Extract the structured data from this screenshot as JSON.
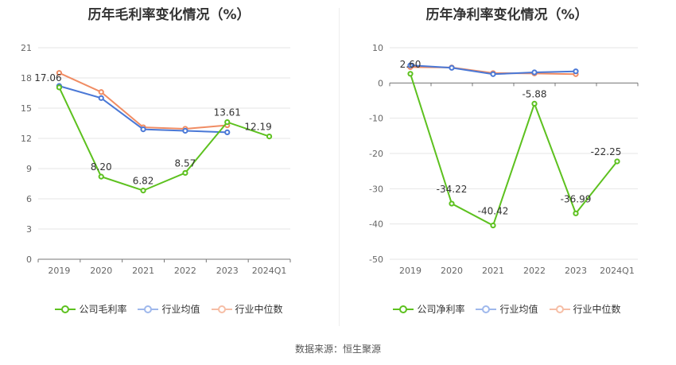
{
  "source_label": "数据来源：恒生聚源",
  "legend_labels": {
    "left": [
      "公司毛利率",
      "行业均值",
      "行业中位数"
    ],
    "right": [
      "公司净利率",
      "行业均值",
      "行业中位数"
    ]
  },
  "series_colors": [
    "#5dc11f",
    "#4a78d6",
    "#f08c63"
  ],
  "chart_data": [
    {
      "type": "line",
      "title": "历年毛利率变化情况（%）",
      "categories": [
        "2019",
        "2020",
        "2021",
        "2022",
        "2023",
        "2024Q1"
      ],
      "ylim": [
        0,
        21
      ],
      "yticks": [
        0,
        3,
        6,
        9,
        12,
        15,
        18,
        21
      ],
      "grid": true,
      "legend_position": "bottom",
      "series": [
        {
          "name": "公司毛利率",
          "values": [
            17.06,
            8.2,
            6.82,
            8.57,
            13.61,
            12.19
          ],
          "labels": [
            "17.06",
            "8.20",
            "6.82",
            "8.57",
            "13.61",
            "12.19"
          ]
        },
        {
          "name": "行业均值",
          "values": [
            17.2,
            16.0,
            12.9,
            12.75,
            12.6,
            null
          ]
        },
        {
          "name": "行业中位数",
          "values": [
            18.5,
            16.6,
            13.1,
            12.95,
            13.3,
            null
          ]
        }
      ]
    },
    {
      "type": "line",
      "title": "历年净利率变化情况（%）",
      "categories": [
        "2019",
        "2020",
        "2021",
        "2022",
        "2023",
        "2024Q1"
      ],
      "ylim": [
        -50,
        10
      ],
      "yticks": [
        -50,
        -40,
        -30,
        -20,
        -10,
        0,
        10
      ],
      "grid": true,
      "legend_position": "bottom",
      "series": [
        {
          "name": "公司净利率",
          "values": [
            2.6,
            -34.22,
            -40.42,
            -5.88,
            -36.99,
            -22.25
          ],
          "labels": [
            "2.60",
            "-34.22",
            "-40.42",
            "-5.88",
            "-36.99",
            "-22.25"
          ]
        },
        {
          "name": "行业均值",
          "values": [
            5.0,
            4.3,
            2.5,
            3.0,
            3.3,
            null
          ]
        },
        {
          "name": "行业中位数",
          "values": [
            4.5,
            4.4,
            2.8,
            2.7,
            2.5,
            null
          ]
        }
      ]
    }
  ]
}
